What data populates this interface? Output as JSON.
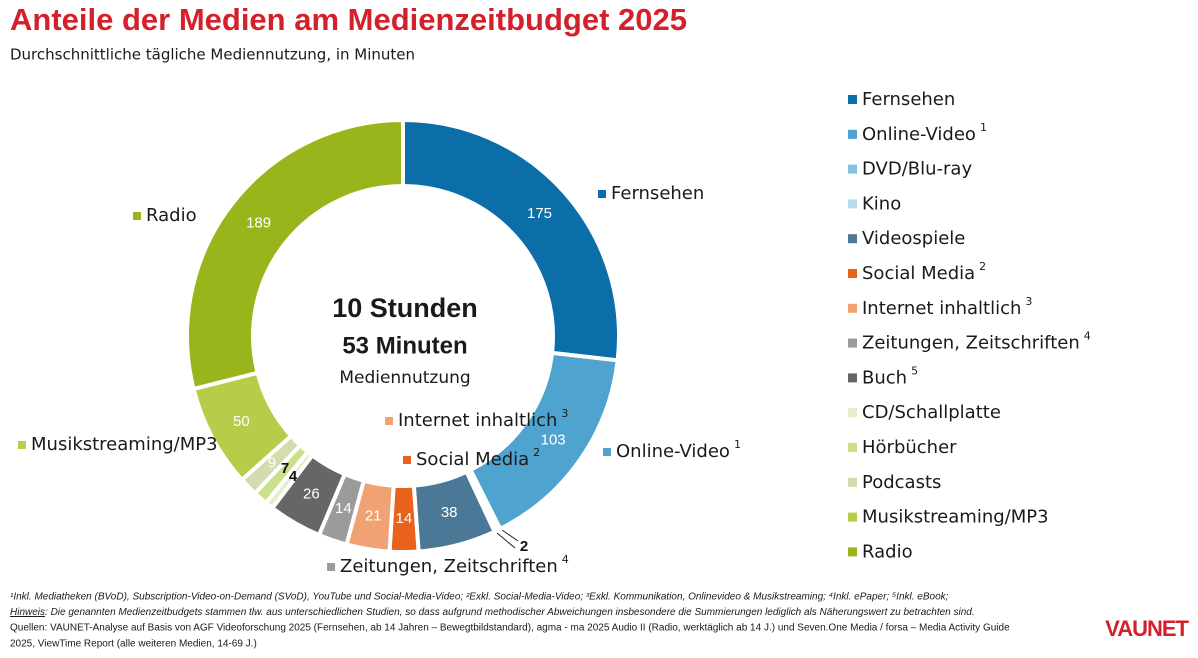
{
  "chart_data": {
    "type": "pie",
    "title": "Anteile der Medien am Medienzeitbudget 2025",
    "subtitle": "Durchschnittliche tägliche Mediennutzung, in Minuten",
    "categories": [
      "Fernsehen",
      "Online-Video",
      "DVD/Blu-ray",
      "Kino",
      "Videospiele",
      "Social Media",
      "Internet inhaltlich",
      "Zeitungen, Zeitschriften",
      "Buch",
      "CD/Schallplatte",
      "Hörbücher",
      "Podcasts",
      "Musikstreaming/MP3",
      "Radio"
    ],
    "notes": [
      null,
      "1",
      null,
      null,
      null,
      "2",
      "3",
      "4",
      "5",
      null,
      null,
      null,
      null,
      null
    ],
    "values": [
      175,
      103,
      2,
      1,
      38,
      14,
      21,
      14,
      26,
      4,
      7,
      9,
      50,
      189
    ],
    "colors": [
      "#0b6ea8",
      "#4ea3cf",
      "#84c0df",
      "#b7dcee",
      "#4c7897",
      "#e8621c",
      "#f0a274",
      "#9b9b9b",
      "#666666",
      "#e3edc8",
      "#cbe08c",
      "#d4dcae",
      "#b8cc4a",
      "#98b51b"
    ],
    "center_label": [
      "10 Stunden",
      "53 Minuten",
      "Mediennutzung"
    ],
    "footnotes": "¹Inkl. Mediatheken (BVoD), Subscription-Video-on-Demand (SVoD), YouTube und Social-Media-Video; ²Exkl. Social-Media-Video; ³Exkl. Kommunikation, Onlinevideo & Musikstreaming; ⁴Inkl. ePaper; ⁵Inkl. eBook;",
    "hinweis_label": "Hinweis",
    "hinweis_text": ": Die genannten Medienzeitbudgets stammen tlw. aus unterschiedlichen Studien, so dass aufgrund methodischer Abweichungen insbesondere die Summierungen lediglich als Näherungswert zu betrachten sind.",
    "sources": [
      "Quellen: VAUNET-Analyse auf Basis von AGF Videoforschung 2025 (Fernsehen, ab 14 Jahren – Bewegtbildstandard), agma - ma 2025 Audio II (Radio, werktäglich ab 14 J.) und Seven.One Media / forsa – Media Activity Guide",
      "2025, ViewTime Report (alle weiteren Medien, 14-69 J.)"
    ],
    "logo": "VAUNET"
  }
}
